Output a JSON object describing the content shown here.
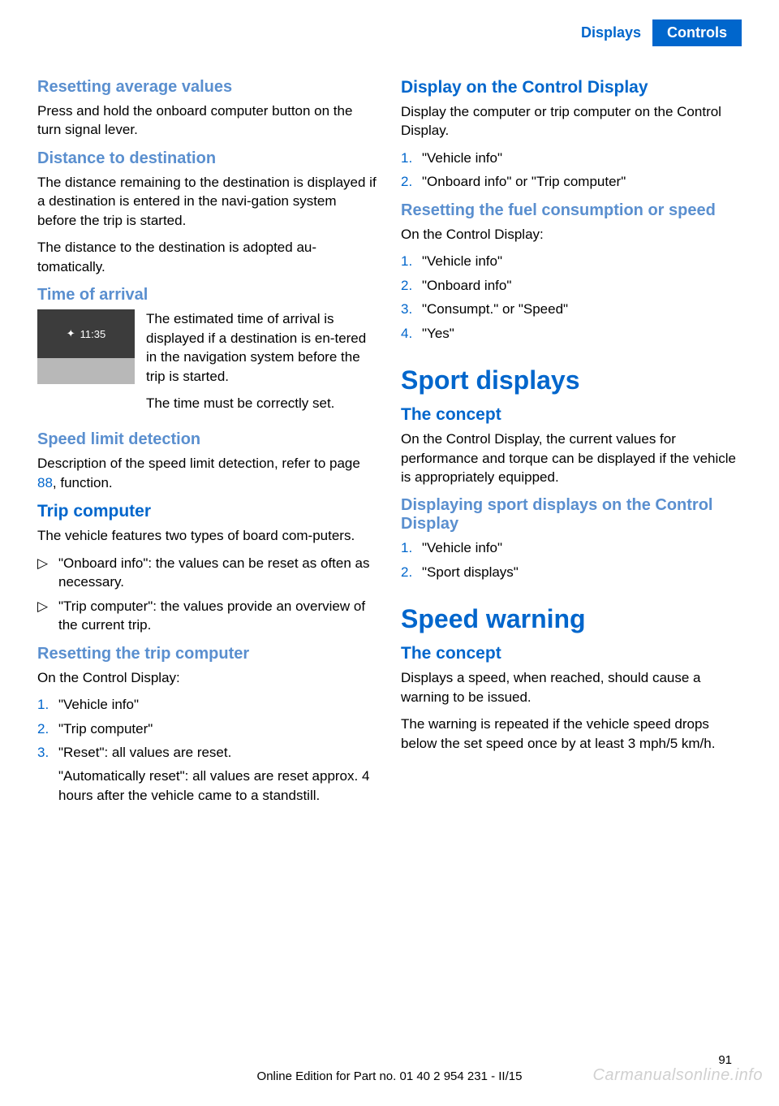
{
  "colors": {
    "blue_strong": "#0066cc",
    "blue_light": "#5a8fcf",
    "header_bg": "#0066cc",
    "text": "#000000"
  },
  "header": {
    "left": "Displays",
    "right": "Controls"
  },
  "left": {
    "s1_title": "Resetting average values",
    "s1_p1": "Press and hold the onboard computer button on the turn signal lever.",
    "s2_title": "Distance to destination",
    "s2_p1": "The distance remaining to the destination is displayed if a destination is entered in the navi‐gation system before the trip is started.",
    "s2_p2": "The distance to the destination is adopted au‐tomatically.",
    "s3_title": "Time of arrival",
    "s3_clock": "11:35",
    "s3_p1": "The estimated time of arrival is displayed if a destination is en‐tered in the navigation system before the trip is started.",
    "s3_p2": "The time must be correctly set.",
    "s4_title": "Speed limit detection",
    "s4_p1a": "Description of the speed limit detection, refer to page ",
    "s4_ref": "88",
    "s4_p1b": ", function.",
    "s5_title": "Trip computer",
    "s5_p1": "The vehicle features two types of board com‐puters.",
    "s5_b1": "\"Onboard info\": the values can be reset as often as necessary.",
    "s5_b2": "\"Trip computer\": the values provide an overview of the current trip.",
    "s6_title": "Resetting the trip computer",
    "s6_p1": "On the Control Display:",
    "s6_n1": "\"Vehicle info\"",
    "s6_n2": "\"Trip computer\"",
    "s6_n3": "\"Reset\": all values are reset.",
    "s6_sub": "\"Automatically reset\": all values are reset approx. 4 hours after the vehicle came to a standstill."
  },
  "right": {
    "r1_title": "Display on the Control Display",
    "r1_p1": "Display the computer or trip computer on the Control Display.",
    "r1_n1": "\"Vehicle info\"",
    "r1_n2": "\"Onboard info\" or \"Trip computer\"",
    "r2_title": "Resetting the fuel consumption or speed",
    "r2_p1": "On the Control Display:",
    "r2_n1": "\"Vehicle info\"",
    "r2_n2": "\"Onboard info\"",
    "r2_n3": "\"Consumpt.\" or \"Speed\"",
    "r2_n4": "\"Yes\"",
    "r3_big": "Sport displays",
    "r3_title": "The concept",
    "r3_p1": "On the Control Display, the current values for performance and torque can be displayed if the vehicle is appropriately equipped.",
    "r4_title": "Displaying sport displays on the Control Display",
    "r4_n1": "\"Vehicle info\"",
    "r4_n2": "\"Sport displays\"",
    "r5_big": "Speed warning",
    "r5_title": "The concept",
    "r5_p1": "Displays a speed, when reached, should cause a warning to be issued.",
    "r5_p2": "The warning is repeated if the vehicle speed drops below the set speed once by at least 3 mph/5 km/h."
  },
  "footer": {
    "page": "91",
    "center": "Online Edition for Part no. 01 40 2 954 231 - II/15",
    "watermark": "Carmanualsonline.info"
  },
  "style": {
    "body_fontsize": 17,
    "h_light_fontsize": 20,
    "h_strong_fontsize": 21,
    "h_large_fontsize": 32
  }
}
